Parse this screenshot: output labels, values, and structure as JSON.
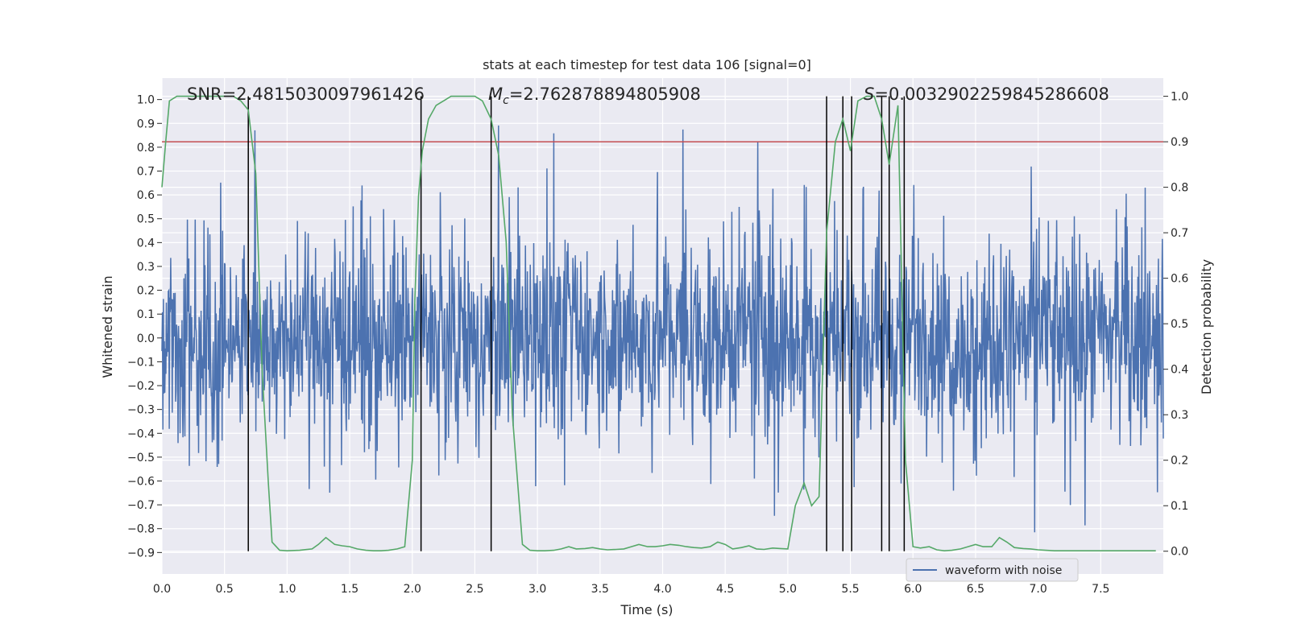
{
  "chart_data": {
    "type": "line",
    "title": "stats at each timestep for test data 106 [signal=0]",
    "xlabel": "Time (s)",
    "ylabel": "Whitened strain",
    "y2label": "Detection probability",
    "xlim": [
      0.0,
      8.0
    ],
    "ylim": [
      -0.99,
      1.09
    ],
    "y2lim": [
      -0.05,
      1.04
    ],
    "x_ticks": [
      0.0,
      0.5,
      1.0,
      1.5,
      2.0,
      2.5,
      3.0,
      3.5,
      4.0,
      4.5,
      5.0,
      5.5,
      6.0,
      6.5,
      7.0,
      7.5
    ],
    "x_tick_labels": [
      "0.0",
      "0.5",
      "1.0",
      "1.5",
      "2.0",
      "2.5",
      "3.0",
      "3.5",
      "4.0",
      "4.5",
      "5.0",
      "5.5",
      "6.0",
      "6.5",
      "7.0",
      "7.5"
    ],
    "y_ticks": [
      -0.9,
      -0.8,
      -0.7,
      -0.6,
      -0.5,
      -0.4,
      -0.3,
      -0.2,
      -0.1,
      0.0,
      0.1,
      0.2,
      0.3,
      0.4,
      0.5,
      0.6,
      0.7,
      0.8,
      0.9,
      1.0
    ],
    "y_tick_labels": [
      "−0.9",
      "−0.8",
      "−0.7",
      "−0.6",
      "−0.5",
      "−0.4",
      "−0.3",
      "−0.2",
      "−0.1",
      "0.0",
      "0.1",
      "0.2",
      "0.3",
      "0.4",
      "0.5",
      "0.6",
      "0.7",
      "0.8",
      "0.9",
      "1.0"
    ],
    "y2_ticks": [
      0.0,
      0.1,
      0.2,
      0.3,
      0.4,
      0.5,
      0.6,
      0.7,
      0.8,
      0.9,
      1.0
    ],
    "y2_tick_labels": [
      "0.0",
      "0.1",
      "0.2",
      "0.3",
      "0.4",
      "0.5",
      "0.6",
      "0.7",
      "0.8",
      "0.9",
      "1.0"
    ],
    "grid": true,
    "legend": {
      "location": "lower-right",
      "entries": [
        "waveform with noise"
      ]
    },
    "annotations": {
      "snr": "SNR=2.4815030097961426",
      "mc_symbol": "M",
      "mc_sub": "c",
      "mc_value": "=2.762878894805908",
      "s_symbol": "S",
      "s_value": "=0.0032902259845286608"
    },
    "threshold": {
      "axis": "y2",
      "value": 0.9,
      "color": "#c44e52"
    },
    "vertical_markers_s": [
      0.69,
      2.07,
      2.63,
      5.31,
      5.44,
      5.51,
      5.75,
      5.81,
      5.93
    ],
    "waveform": {
      "name": "waveform with noise",
      "color": "#4c72b0",
      "samples": 2048,
      "duration_s": 8.0,
      "envelope_core": 0.2,
      "envelope_peak_typical": 0.55,
      "max_approx": 1.0,
      "min_approx": -0.9
    },
    "detection_probability": {
      "name": "detection probability",
      "color": "#55a868",
      "x": [
        0.0,
        0.03,
        0.06,
        0.12,
        0.2,
        0.3,
        0.4,
        0.5,
        0.57,
        0.63,
        0.69,
        0.75,
        0.8,
        0.85,
        0.88,
        0.94,
        1.0,
        1.1,
        1.2,
        1.25,
        1.31,
        1.38,
        1.44,
        1.5,
        1.56,
        1.63,
        1.69,
        1.75,
        1.81,
        1.88,
        1.94,
        2.0,
        2.02,
        2.05,
        2.08,
        2.13,
        2.19,
        2.25,
        2.31,
        2.38,
        2.44,
        2.5,
        2.56,
        2.63,
        2.69,
        2.75,
        2.8,
        2.88,
        2.94,
        3.0,
        3.06,
        3.13,
        3.19,
        3.25,
        3.31,
        3.38,
        3.44,
        3.5,
        3.56,
        3.63,
        3.69,
        3.75,
        3.81,
        3.88,
        3.94,
        4.0,
        4.06,
        4.13,
        4.19,
        4.25,
        4.31,
        4.38,
        4.44,
        4.5,
        4.56,
        4.63,
        4.69,
        4.75,
        4.81,
        4.88,
        4.94,
        5.0,
        5.06,
        5.13,
        5.19,
        5.25,
        5.31,
        5.38,
        5.44,
        5.5,
        5.56,
        5.63,
        5.69,
        5.75,
        5.81,
        5.88,
        5.94,
        6.0,
        6.06,
        6.13,
        6.19,
        6.25,
        6.31,
        6.38,
        6.44,
        6.5,
        6.56,
        6.63,
        6.69,
        6.75,
        6.81,
        6.88,
        6.94,
        7.0,
        7.06,
        7.13,
        7.19,
        7.25,
        7.31,
        7.38,
        7.44,
        7.5,
        7.56,
        7.63,
        7.69,
        7.75,
        7.81,
        7.88,
        7.94
      ],
      "values": [
        0.8,
        0.9,
        0.99,
        1.0,
        1.0,
        1.0,
        1.0,
        1.0,
        1.0,
        0.99,
        0.97,
        0.83,
        0.4,
        0.15,
        0.02,
        0.002,
        0.001,
        0.002,
        0.005,
        0.015,
        0.03,
        0.015,
        0.012,
        0.01,
        0.005,
        0.002,
        0.001,
        0.001,
        0.002,
        0.005,
        0.01,
        0.2,
        0.55,
        0.78,
        0.88,
        0.95,
        0.98,
        0.99,
        1.0,
        1.0,
        1.0,
        1.0,
        0.99,
        0.95,
        0.87,
        0.68,
        0.3,
        0.015,
        0.002,
        0.001,
        0.001,
        0.002,
        0.005,
        0.01,
        0.005,
        0.006,
        0.008,
        0.005,
        0.003,
        0.004,
        0.005,
        0.01,
        0.015,
        0.01,
        0.01,
        0.012,
        0.015,
        0.013,
        0.01,
        0.008,
        0.007,
        0.01,
        0.02,
        0.015,
        0.005,
        0.008,
        0.012,
        0.005,
        0.004,
        0.007,
        0.006,
        0.005,
        0.1,
        0.15,
        0.1,
        0.12,
        0.7,
        0.9,
        0.95,
        0.88,
        0.99,
        1.0,
        1.0,
        0.95,
        0.85,
        0.98,
        0.2,
        0.01,
        0.007,
        0.01,
        0.003,
        0.001,
        0.002,
        0.005,
        0.01,
        0.015,
        0.01,
        0.01,
        0.03,
        0.02,
        0.008,
        0.006,
        0.005,
        0.003,
        0.002,
        0.001,
        0.001,
        0.001,
        0.001,
        0.001,
        0.001,
        0.001,
        0.001,
        0.001,
        0.001,
        0.001,
        0.001,
        0.001,
        0.001
      ]
    }
  }
}
